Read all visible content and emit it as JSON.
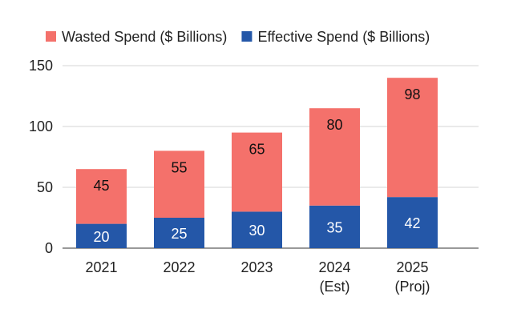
{
  "chart_data": {
    "type": "bar",
    "stacked": true,
    "title": "",
    "xlabel": "",
    "ylabel": "",
    "ylim": [
      0,
      150
    ],
    "yticks": [
      0,
      50,
      100,
      150
    ],
    "grid": true,
    "legend_position": "top",
    "categories": [
      [
        "2021"
      ],
      [
        "2022"
      ],
      [
        "2023"
      ],
      [
        "2024",
        "(Est)"
      ],
      [
        "2025",
        "(Proj)"
      ]
    ],
    "series": [
      {
        "name": "Effective Spend ($ Billions)",
        "color": "#2457a8",
        "label_color": "#ffffff",
        "values": [
          20,
          25,
          30,
          35,
          42
        ]
      },
      {
        "name": "Wasted Spend ($ Billions)",
        "color": "#f4716b",
        "label_color": "#111111",
        "values": [
          45,
          55,
          65,
          80,
          98
        ]
      }
    ],
    "legend_order": [
      "Wasted Spend ($ Billions)",
      "Effective Spend ($ Billions)"
    ]
  }
}
